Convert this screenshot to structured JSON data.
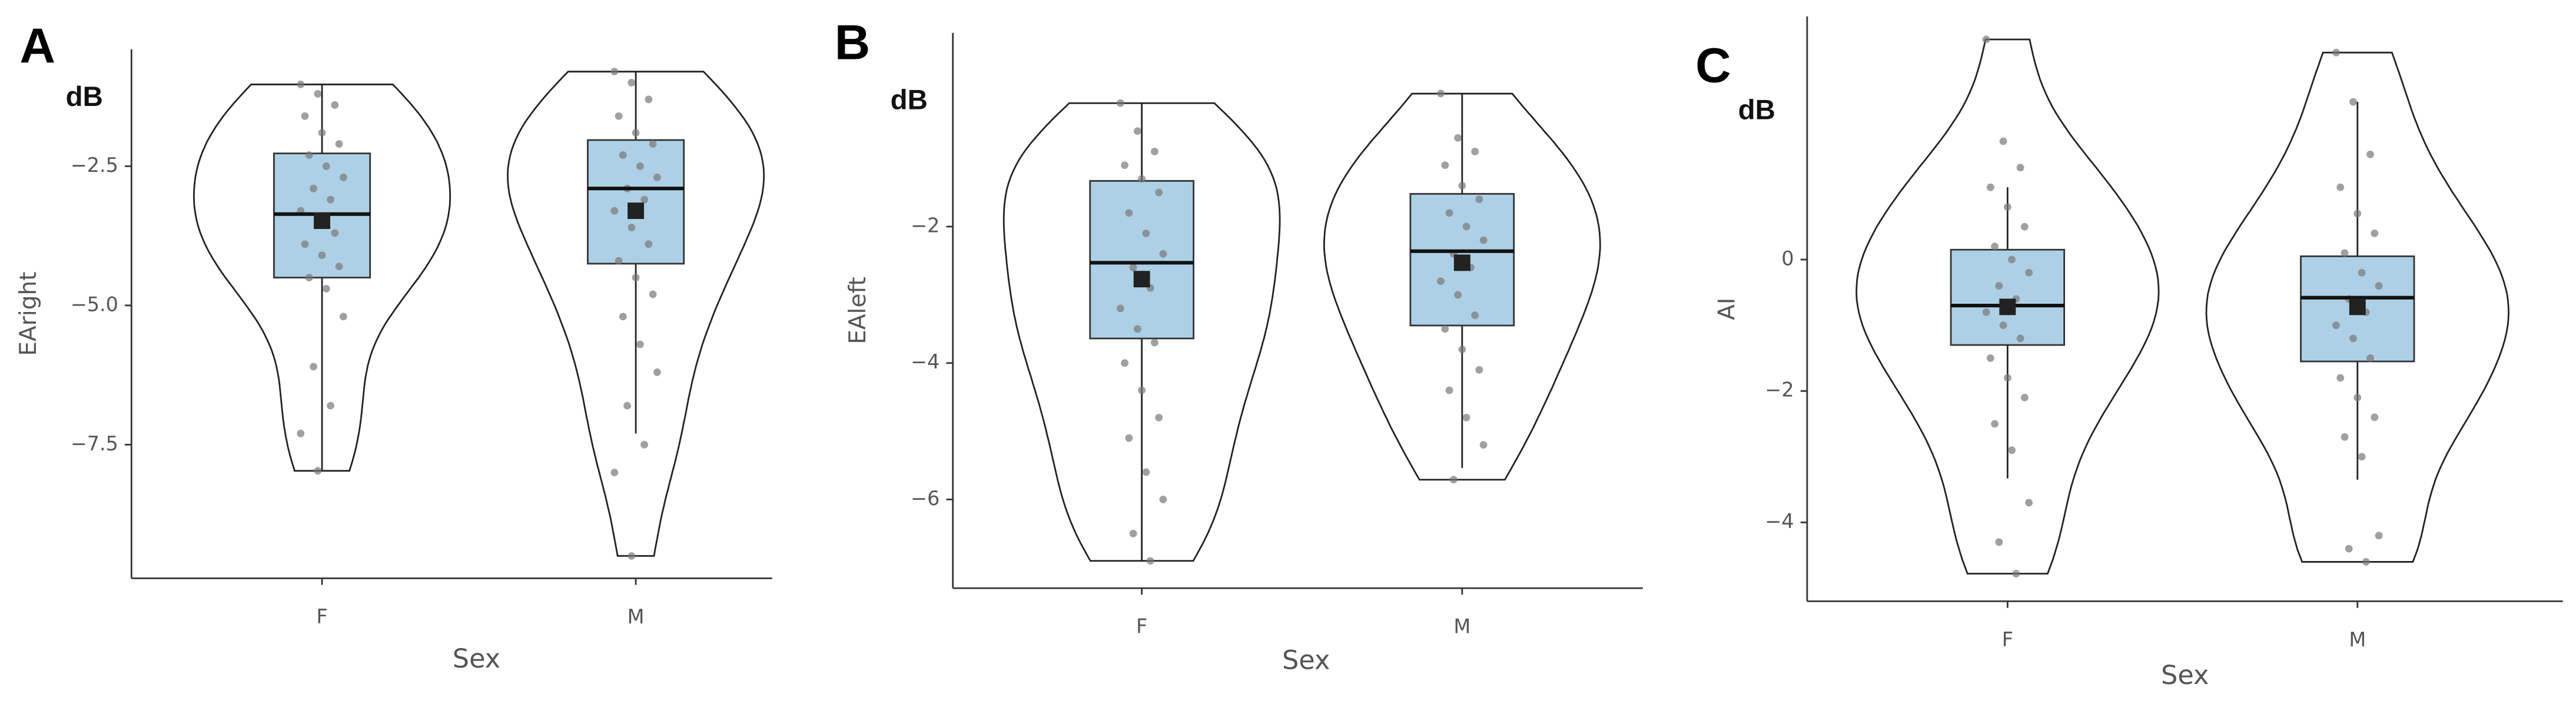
{
  "chart_data": [
    {
      "type": "violin",
      "title": "A",
      "unit_label": "dB",
      "y_label": "EAright",
      "x_label": "Sex",
      "categories": [
        "F",
        "M"
      ],
      "color": "#aed0e6",
      "ylim": [
        -9.9,
        -0.4
      ],
      "yticks": [
        {
          "value": -2.5,
          "label": "−2.5"
        },
        {
          "value": -5,
          "label": "−5.0"
        },
        {
          "value": -7.5,
          "label": "−7.5"
        }
      ],
      "boxes": [
        {
          "whisker_low": -7.97,
          "q1": -4.5,
          "median": -3.36,
          "q3": -2.27,
          "whisker_high": -1.03,
          "mean": -3.48
        },
        {
          "whisker_low": -7.3,
          "q1": -4.25,
          "median": -2.9,
          "q3": -2.03,
          "whisker_high": -0.8,
          "mean": -3.3
        }
      ],
      "points": [
        [
          -1.03,
          -1.2,
          -1.4,
          -1.6,
          -1.9,
          -2.1,
          -2.3,
          -2.5,
          -2.7,
          -2.9,
          -3.1,
          -3.3,
          -3.5,
          -3.7,
          -3.9,
          -4.1,
          -4.3,
          -4.5,
          -4.7,
          -5.2,
          -6.1,
          -6.8,
          -7.3,
          -7.97
        ],
        [
          -0.8,
          -1.0,
          -1.3,
          -1.6,
          -1.9,
          -2.1,
          -2.3,
          -2.5,
          -2.7,
          -2.9,
          -3.1,
          -3.3,
          -3.6,
          -3.9,
          -4.2,
          -4.5,
          -4.8,
          -5.2,
          -5.7,
          -6.2,
          -6.8,
          -7.5,
          -8.0,
          -9.5
        ]
      ]
    },
    {
      "type": "violin",
      "title": "B",
      "unit_label": "dB",
      "y_label": "EAleft",
      "x_label": "Sex",
      "categories": [
        "F",
        "M"
      ],
      "color": "#aed0e6",
      "ylim": [
        -7.3,
        0.84
      ],
      "yticks": [
        {
          "value": -2,
          "label": "−2"
        },
        {
          "value": -4,
          "label": "−4"
        },
        {
          "value": -6,
          "label": "−6"
        }
      ],
      "boxes": [
        {
          "whisker_low": -6.9,
          "q1": -3.64,
          "median": -2.53,
          "q3": -1.33,
          "whisker_high": -0.19,
          "mean": -2.77
        },
        {
          "whisker_low": -5.54,
          "q1": -3.45,
          "median": -2.36,
          "q3": -1.52,
          "whisker_high": -0.05,
          "mean": -2.53
        }
      ],
      "points": [
        [
          -0.19,
          -0.6,
          -0.9,
          -1.1,
          -1.3,
          -1.5,
          -1.8,
          -2.1,
          -2.4,
          -2.6,
          -2.9,
          -3.2,
          -3.5,
          -3.7,
          -4.0,
          -4.4,
          -4.8,
          -5.1,
          -5.6,
          -6.0,
          -6.5,
          -6.9
        ],
        [
          -0.05,
          -0.7,
          -0.9,
          -1.1,
          -1.4,
          -1.6,
          -1.8,
          -2.0,
          -2.2,
          -2.4,
          -2.6,
          -2.8,
          -3.0,
          -3.3,
          -3.5,
          -3.8,
          -4.1,
          -4.4,
          -4.8,
          -5.2,
          -5.71
        ]
      ]
    },
    {
      "type": "violin",
      "title": "C",
      "unit_label": "dB",
      "y_label": "AI",
      "x_label": "Sex",
      "categories": [
        "F",
        "M"
      ],
      "color": "#aed0e6",
      "ylim": [
        -5.2,
        3.7
      ],
      "yticks": [
        0,
        {
          "value": -2,
          "label": "−2"
        },
        {
          "value": -4,
          "label": "−4"
        }
      ],
      "boxes": [
        {
          "whisker_low": -3.33,
          "q1": -1.3,
          "median": -0.7,
          "q3": 0.15,
          "whisker_high": 1.1,
          "mean": -0.72
        },
        {
          "whisker_low": -3.35,
          "q1": -1.55,
          "median": -0.58,
          "q3": 0.05,
          "whisker_high": 2.4,
          "mean": -0.72
        }
      ],
      "points": [
        [
          3.35,
          1.8,
          1.4,
          1.1,
          0.8,
          0.5,
          0.2,
          0,
          -0.2,
          -0.4,
          -0.6,
          -0.8,
          -1.0,
          -1.2,
          -1.5,
          -1.8,
          -2.1,
          -2.5,
          -2.9,
          -3.7,
          -4.3,
          -4.78
        ],
        [
          3.15,
          2.4,
          1.6,
          1.1,
          0.7,
          0.4,
          0.1,
          -0.2,
          -0.4,
          -0.6,
          -0.8,
          -1.0,
          -1.2,
          -1.5,
          -1.8,
          -2.1,
          -2.4,
          -2.7,
          -3.0,
          -4.2,
          -4.4,
          -4.6
        ]
      ]
    }
  ]
}
